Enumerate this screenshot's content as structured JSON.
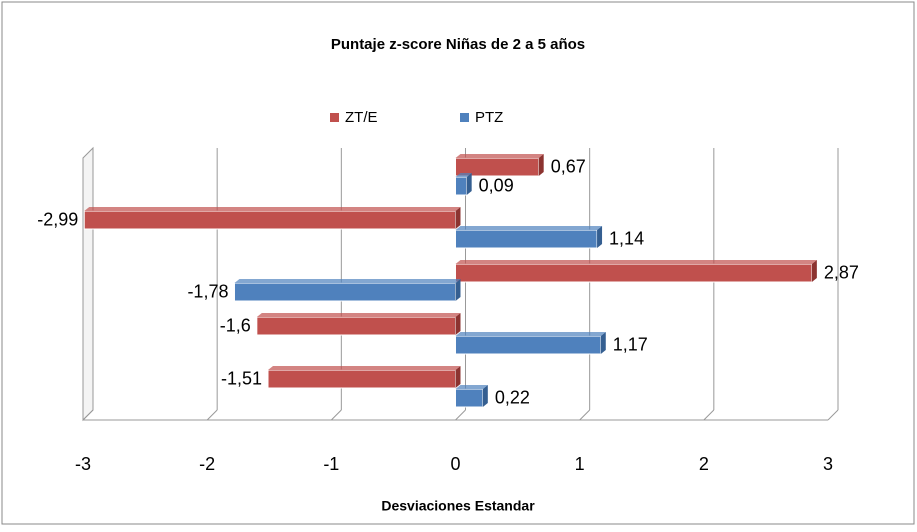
{
  "chart_data": {
    "type": "bar",
    "orientation": "horizontal",
    "title": "Puntaje z-score Niñas de 2 a 5 años",
    "x_label": "Desviaciones Estandar",
    "categories": [
      null,
      null,
      null,
      null,
      null
    ],
    "series": [
      {
        "name": "ZT/E",
        "color": "#c0504d",
        "values": [
          0.67,
          -2.99,
          2.87,
          -1.6,
          -1.51
        ],
        "value_labels": [
          "0,67",
          "-2,99",
          "2,87",
          "-1,6",
          "-1,51"
        ]
      },
      {
        "name": "PTZ",
        "color": "#4f81bd",
        "values": [
          0.09,
          1.14,
          -1.78,
          1.17,
          0.22
        ],
        "value_labels": [
          "0,09",
          "1,14",
          "-1,78",
          "1,17",
          "0,22"
        ]
      }
    ],
    "xlim": [
      -3,
      3
    ],
    "xticks": [
      -3,
      -2,
      -1,
      0,
      1,
      2,
      3
    ],
    "grid": true,
    "legend": "top"
  }
}
